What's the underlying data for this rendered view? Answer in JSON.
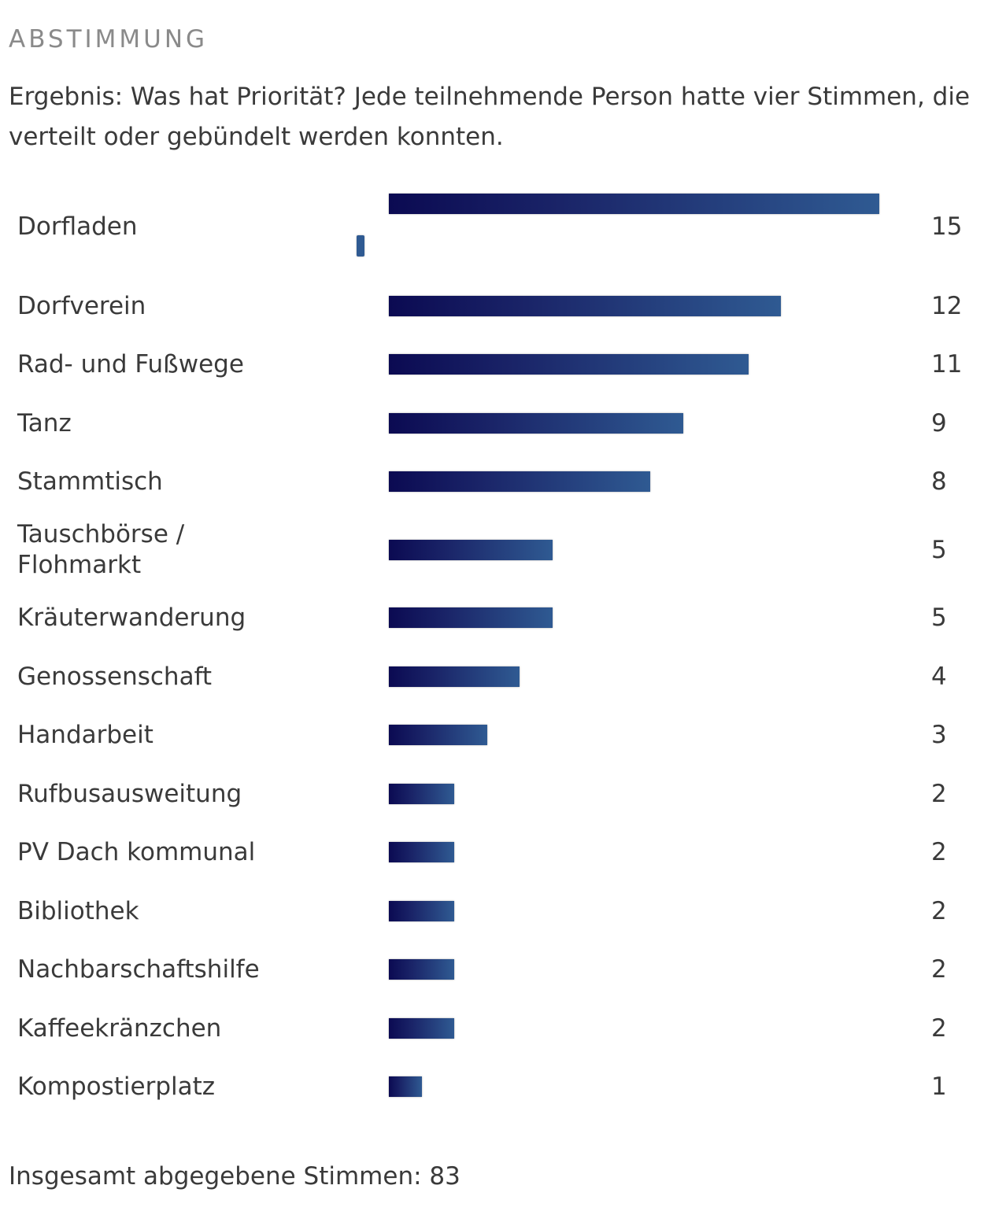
{
  "heading": "ABSTIMMUNG",
  "intro": "Ergebnis: Was hat Priorität? Jede teilnehmende Person hatte vier Stimmen, die verteilt oder gebündelt werden konnten.",
  "total_text": "Insgesamt abgegebene Stimmen: 83",
  "colors": {
    "bar_start": "#0b0a52",
    "bar_end": "#2f5a92",
    "heading": "#8a8a8a",
    "text": "#3a3a3a"
  },
  "chart_data": {
    "type": "bar",
    "orientation": "horizontal",
    "categories": [
      "Dorfladen",
      "Dorfverein",
      "Rad- und Fußwege",
      "Tanz",
      "Stammtisch",
      "Tauschbörse / Flohmarkt",
      "Kräuterwanderung",
      "Genossenschaft",
      "Handarbeit",
      "Rufbusausweitung",
      "PV Dach kommunal",
      "Bibliothek",
      "Nachbarschaftshilfe",
      "Kaffeekränzchen",
      "Kompostierplatz"
    ],
    "values": [
      15,
      12,
      11,
      9,
      8,
      5,
      5,
      4,
      3,
      2,
      2,
      2,
      2,
      2,
      1
    ],
    "value_labels": [
      "15",
      "12",
      "11",
      "9",
      "8",
      "5",
      "5",
      "4",
      "3",
      "2",
      "2",
      "2",
      "2",
      "2",
      "1"
    ],
    "xlim": [
      0,
      15
    ],
    "grid": false,
    "legend": "none"
  }
}
